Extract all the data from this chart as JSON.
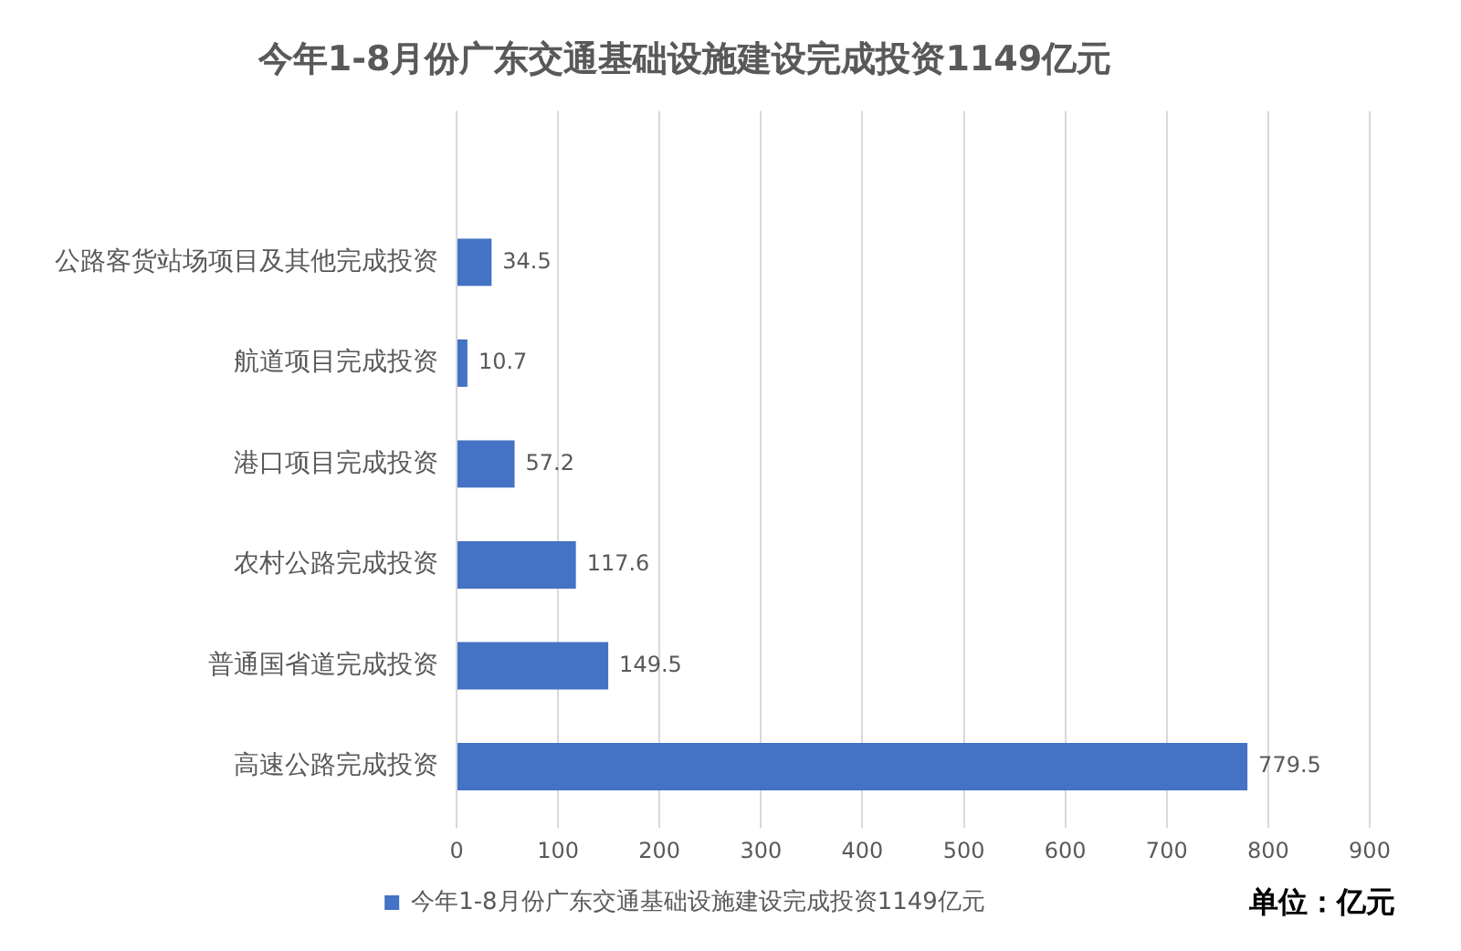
{
  "chart_data": {
    "type": "bar",
    "orientation": "horizontal",
    "title": "今年1-8月份广东交通基础设施建设完成投资1149亿元",
    "categories": [
      "公路客货站场项目及其他完成投资",
      "航道项目完成投资",
      "港口项目完成投资",
      "农村公路完成投资",
      "普通国省道完成投资",
      "高速公路完成投资"
    ],
    "series": [
      {
        "name": "今年1-8月份广东交通基础设施建设完成投资1149亿元",
        "color": "#4472c4",
        "values": [
          34.5,
          10.7,
          57.2,
          117.6,
          149.5,
          779.5
        ]
      }
    ],
    "xlim": [
      0,
      900
    ],
    "xticks": [
      0,
      100,
      200,
      300,
      400,
      500,
      600,
      700,
      800,
      900
    ],
    "grid": "x",
    "legend": "bottom",
    "data_labels": true,
    "annotations": [
      "单位：亿元"
    ]
  }
}
